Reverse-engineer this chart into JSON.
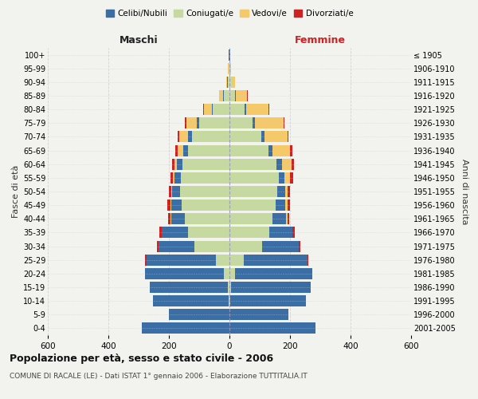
{
  "age_groups": [
    "100+",
    "95-99",
    "90-94",
    "85-89",
    "80-84",
    "75-79",
    "70-74",
    "65-69",
    "60-64",
    "55-59",
    "50-54",
    "45-49",
    "40-44",
    "35-39",
    "30-34",
    "25-29",
    "20-24",
    "15-19",
    "10-14",
    "5-9",
    "0-4"
  ],
  "birth_years": [
    "≤ 1905",
    "1906-1910",
    "1911-1915",
    "1916-1920",
    "1921-1925",
    "1926-1930",
    "1931-1935",
    "1936-1940",
    "1941-1945",
    "1946-1950",
    "1951-1955",
    "1956-1960",
    "1961-1965",
    "1966-1970",
    "1971-1975",
    "1976-1980",
    "1981-1985",
    "1986-1990",
    "1991-1995",
    "1996-2000",
    "2001-2005"
  ],
  "male_celibe": [
    1,
    1,
    2,
    3,
    4,
    8,
    12,
    15,
    18,
    22,
    28,
    35,
    45,
    85,
    120,
    230,
    260,
    260,
    250,
    200,
    290
  ],
  "male_coniugato": [
    1,
    2,
    5,
    18,
    55,
    100,
    125,
    138,
    155,
    160,
    162,
    158,
    148,
    138,
    115,
    45,
    18,
    4,
    2,
    1,
    0
  ],
  "male_vedovo": [
    0,
    1,
    3,
    12,
    25,
    35,
    28,
    18,
    8,
    4,
    2,
    2,
    1,
    1,
    0,
    0,
    0,
    0,
    0,
    0,
    0
  ],
  "male_divorziato": [
    0,
    0,
    0,
    1,
    2,
    4,
    7,
    8,
    8,
    9,
    9,
    11,
    8,
    8,
    5,
    3,
    1,
    0,
    0,
    0,
    0
  ],
  "female_celibe": [
    1,
    1,
    2,
    3,
    4,
    8,
    12,
    15,
    18,
    20,
    25,
    32,
    45,
    75,
    120,
    210,
    255,
    265,
    250,
    195,
    285
  ],
  "female_coniugata": [
    1,
    2,
    7,
    18,
    50,
    75,
    105,
    128,
    155,
    162,
    158,
    152,
    142,
    132,
    108,
    48,
    18,
    4,
    2,
    1,
    0
  ],
  "female_vedova": [
    0,
    2,
    9,
    38,
    75,
    95,
    75,
    58,
    32,
    18,
    9,
    7,
    4,
    2,
    1,
    1,
    0,
    0,
    0,
    0,
    0
  ],
  "female_divorziata": [
    0,
    0,
    0,
    1,
    2,
    4,
    4,
    7,
    9,
    11,
    9,
    8,
    7,
    8,
    4,
    2,
    1,
    0,
    0,
    0,
    0
  ],
  "color_celibe": "#3a6ea5",
  "color_coniugato": "#c5d9a0",
  "color_vedovo": "#f5c96a",
  "color_divorziato": "#cc2222",
  "title": "Popolazione per età, sesso e stato civile - 2006",
  "subtitle": "COMUNE DI RACALE (LE) - Dati ISTAT 1° gennaio 2006 - Elaborazione TUTTITALIA.IT",
  "label_maschi": "Maschi",
  "label_femmine": "Femmine",
  "ylabel_left": "Fasce di età",
  "ylabel_right": "Anni di nascita",
  "xlim": 600,
  "background": "#f2f2ee",
  "grid_color": "#cccccc"
}
